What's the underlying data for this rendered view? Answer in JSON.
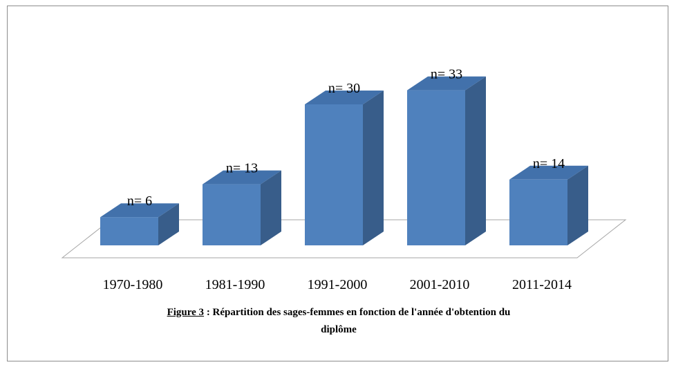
{
  "chart_data": {
    "type": "bar3d",
    "categories": [
      "1970-1980",
      "1981-1990",
      "1991-2000",
      "2001-2010",
      "2011-2014"
    ],
    "values": [
      6,
      13,
      30,
      33,
      14
    ],
    "value_labels": [
      "n= 6",
      "n= 13",
      "n= 30",
      "n= 33",
      "n= 14"
    ],
    "color": "#4f81bd",
    "caption": {
      "label": "Figure 3",
      "text": " : Répartition des sages-femmes en fonction de l'année d'obtention du diplôme"
    }
  }
}
